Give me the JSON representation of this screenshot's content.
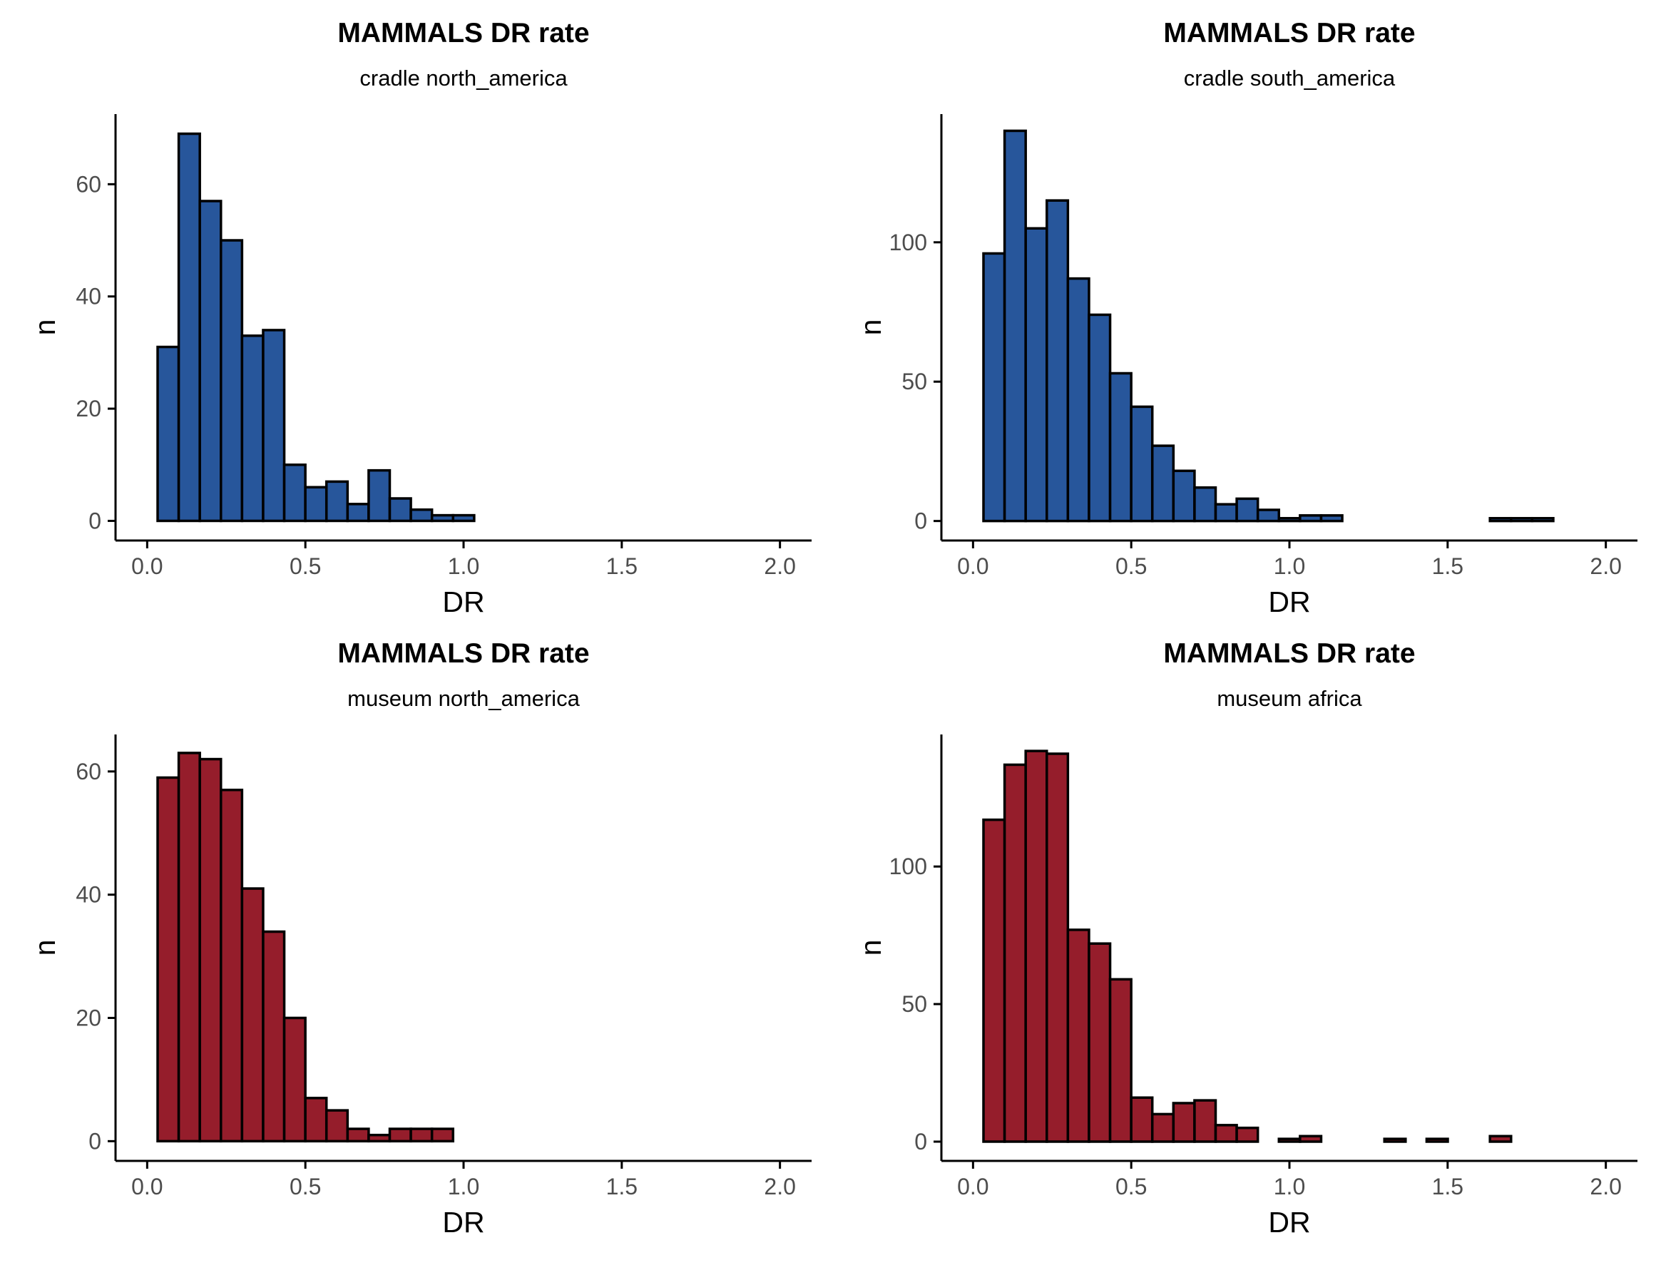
{
  "colors": {
    "cradle": "#27569B",
    "museum": "#951D2B"
  },
  "chart_data": [
    {
      "type": "bar",
      "title": "MAMMALS DR rate",
      "subtitle": "cradle north_america",
      "xlabel": "DR",
      "ylabel": "n",
      "color": "#27569B",
      "xlim": [
        -0.1,
        2.1
      ],
      "ylim": [
        -3.5,
        72.5
      ],
      "xticks": [
        0.0,
        0.5,
        1.0,
        1.5,
        2.0
      ],
      "xtick_labels": [
        "0.0",
        "0.5",
        "1.0",
        "1.5",
        "2.0"
      ],
      "yticks": [
        0,
        20,
        40,
        60
      ],
      "ytick_labels": [
        "0",
        "20",
        "40",
        "60"
      ],
      "bin_start": 0.033,
      "bin_width": 0.0667,
      "values": [
        31,
        69,
        57,
        50,
        33,
        34,
        10,
        6,
        7,
        3,
        9,
        4,
        2,
        1,
        1,
        0,
        0,
        0,
        0,
        0,
        0,
        0,
        0,
        0,
        0,
        0,
        0,
        0,
        0
      ]
    },
    {
      "type": "bar",
      "title": "MAMMALS DR rate",
      "subtitle": "cradle south_america",
      "xlabel": "DR",
      "ylabel": "n",
      "color": "#27569B",
      "xlim": [
        -0.1,
        2.1
      ],
      "ylim": [
        -7,
        146
      ],
      "xticks": [
        0.0,
        0.5,
        1.0,
        1.5,
        2.0
      ],
      "xtick_labels": [
        "0.0",
        "0.5",
        "1.0",
        "1.5",
        "2.0"
      ],
      "yticks": [
        0,
        50,
        100
      ],
      "ytick_labels": [
        "0",
        "50",
        "100"
      ],
      "bin_start": 0.033,
      "bin_width": 0.0667,
      "values": [
        96,
        140,
        105,
        115,
        87,
        74,
        53,
        41,
        27,
        18,
        12,
        6,
        8,
        4,
        1,
        2,
        2,
        0,
        0,
        0,
        0,
        0,
        0,
        0,
        1,
        1,
        1,
        0,
        0
      ]
    },
    {
      "type": "bar",
      "title": "MAMMALS DR rate",
      "subtitle": "museum north_america",
      "xlabel": "DR",
      "ylabel": "n",
      "color": "#951D2B",
      "xlim": [
        -0.1,
        2.1
      ],
      "ylim": [
        -3.2,
        66
      ],
      "xticks": [
        0.0,
        0.5,
        1.0,
        1.5,
        2.0
      ],
      "xtick_labels": [
        "0.0",
        "0.5",
        "1.0",
        "1.5",
        "2.0"
      ],
      "yticks": [
        0,
        20,
        40,
        60
      ],
      "ytick_labels": [
        "0",
        "20",
        "40",
        "60"
      ],
      "bin_start": 0.033,
      "bin_width": 0.0667,
      "values": [
        59,
        63,
        62,
        57,
        41,
        34,
        20,
        7,
        5,
        2,
        1,
        2,
        2,
        2,
        0,
        0,
        0,
        0,
        0,
        0,
        0,
        0,
        0,
        0,
        0,
        0,
        0,
        0,
        0
      ]
    },
    {
      "type": "bar",
      "title": "MAMMALS DR rate",
      "subtitle": "museum africa",
      "xlabel": "DR",
      "ylabel": "n",
      "color": "#951D2B",
      "xlim": [
        -0.1,
        2.1
      ],
      "ylim": [
        -7,
        148
      ],
      "xticks": [
        0.0,
        0.5,
        1.0,
        1.5,
        2.0
      ],
      "xtick_labels": [
        "0.0",
        "0.5",
        "1.0",
        "1.5",
        "2.0"
      ],
      "yticks": [
        0,
        50,
        100
      ],
      "ytick_labels": [
        "0",
        "50",
        "100"
      ],
      "bin_start": 0.033,
      "bin_width": 0.0667,
      "values": [
        117,
        137,
        142,
        141,
        77,
        72,
        59,
        16,
        10,
        14,
        15,
        6,
        5,
        0,
        1,
        2,
        0,
        0,
        0,
        1,
        0,
        1,
        0,
        0,
        2,
        0,
        0,
        0,
        0
      ]
    }
  ]
}
